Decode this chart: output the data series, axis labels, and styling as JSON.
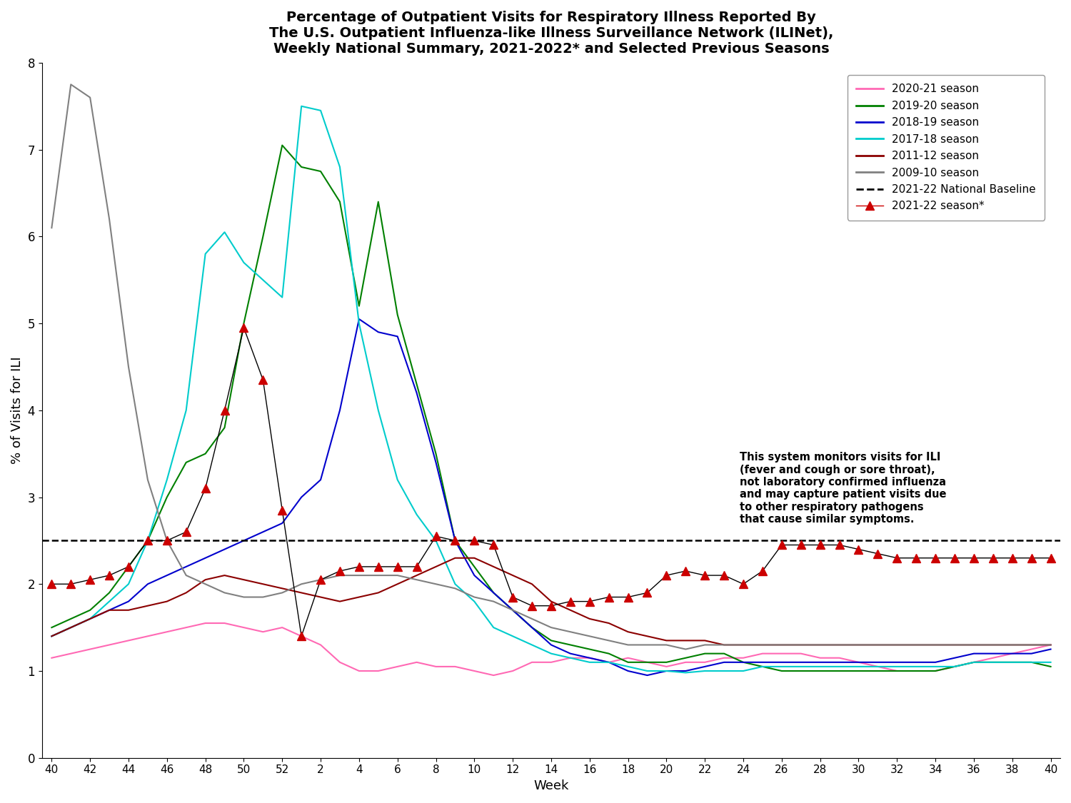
{
  "title": "Percentage of Outpatient Visits for Respiratory Illness Reported By\nThe U.S. Outpatient Influenza-like Illness Surveillance Network (ILINet),\nWeekly National Summary, 2021-2022* and Selected Previous Seasons",
  "xlabel": "Week",
  "ylabel": "% of Visits for ILI",
  "ylim": [
    0,
    8
  ],
  "yticks": [
    0,
    1,
    2,
    3,
    4,
    5,
    6,
    7,
    8
  ],
  "baseline": 2.5,
  "annotation": "This system monitors visits for ILI\n(fever and cough or sore throat),\nnot laboratory confirmed influenza\nand may capture patient visits due\nto other respiratory pathogens\nthat cause similar symptoms.",
  "x_tick_labels": [
    "40",
    "42",
    "44",
    "46",
    "48",
    "50",
    "52",
    "2",
    "4",
    "6",
    "8",
    "10",
    "12",
    "14",
    "16",
    "18",
    "20",
    "22",
    "24",
    "26",
    "28",
    "30",
    "32",
    "34",
    "36",
    "38",
    "40"
  ],
  "seasons": {
    "2020-21": {
      "color": "#FF69B4",
      "values": [
        1.15,
        1.2,
        1.25,
        1.3,
        1.35,
        1.4,
        1.45,
        1.5,
        1.55,
        1.55,
        1.5,
        1.45,
        1.5,
        1.4,
        1.3,
        1.1,
        1.0,
        1.0,
        1.05,
        1.1,
        1.05,
        1.05,
        1.0,
        0.95,
        1.0,
        1.1,
        1.1,
        1.15,
        1.15,
        1.1,
        1.15,
        1.1,
        1.05,
        1.1,
        1.1,
        1.15,
        1.15,
        1.2,
        1.2,
        1.2,
        1.15,
        1.15,
        1.1,
        1.05,
        1.0,
        1.0,
        1.0,
        1.05,
        1.1,
        1.15,
        1.2,
        1.25,
        1.3
      ]
    },
    "2019-20": {
      "color": "#008000",
      "values": [
        1.5,
        1.6,
        1.7,
        1.9,
        2.2,
        2.5,
        3.0,
        3.4,
        3.5,
        3.8,
        5.0,
        6.0,
        7.05,
        6.8,
        6.75,
        6.4,
        5.2,
        6.4,
        5.1,
        4.3,
        3.5,
        2.5,
        2.2,
        1.9,
        1.7,
        1.5,
        1.35,
        1.3,
        1.25,
        1.2,
        1.1,
        1.1,
        1.1,
        1.15,
        1.2,
        1.2,
        1.1,
        1.05,
        1.0,
        1.0,
        1.0,
        1.0,
        1.0,
        1.0,
        1.0,
        1.0,
        1.0,
        1.05,
        1.1,
        1.1,
        1.1,
        1.1,
        1.05
      ]
    },
    "2018-19": {
      "color": "#0000CD",
      "values": [
        1.4,
        1.5,
        1.6,
        1.7,
        1.8,
        2.0,
        2.1,
        2.2,
        2.3,
        2.4,
        2.5,
        2.6,
        2.7,
        3.0,
        3.2,
        4.0,
        5.05,
        4.9,
        4.85,
        4.2,
        3.4,
        2.5,
        2.1,
        1.9,
        1.7,
        1.5,
        1.3,
        1.2,
        1.15,
        1.1,
        1.0,
        0.95,
        1.0,
        1.0,
        1.05,
        1.1,
        1.1,
        1.1,
        1.1,
        1.1,
        1.1,
        1.1,
        1.1,
        1.1,
        1.1,
        1.1,
        1.1,
        1.15,
        1.2,
        1.2,
        1.2,
        1.2,
        1.25
      ]
    },
    "2017-18": {
      "color": "#00CCCC",
      "values": [
        1.4,
        1.5,
        1.6,
        1.8,
        2.0,
        2.5,
        3.2,
        4.0,
        5.8,
        6.05,
        5.7,
        5.5,
        5.3,
        7.5,
        7.45,
        6.8,
        5.0,
        4.0,
        3.2,
        2.8,
        2.5,
        2.0,
        1.8,
        1.5,
        1.4,
        1.3,
        1.2,
        1.15,
        1.1,
        1.1,
        1.05,
        1.0,
        1.0,
        0.98,
        1.0,
        1.0,
        1.0,
        1.05,
        1.05,
        1.05,
        1.05,
        1.05,
        1.05,
        1.05,
        1.05,
        1.05,
        1.05,
        1.05,
        1.1,
        1.1,
        1.1,
        1.1,
        1.1
      ]
    },
    "2011-12": {
      "color": "#8B0000",
      "values": [
        1.4,
        1.5,
        1.6,
        1.7,
        1.7,
        1.75,
        1.8,
        1.9,
        2.05,
        2.1,
        2.05,
        2.0,
        1.95,
        1.9,
        1.85,
        1.8,
        1.85,
        1.9,
        2.0,
        2.1,
        2.2,
        2.3,
        2.3,
        2.2,
        2.1,
        2.0,
        1.8,
        1.7,
        1.6,
        1.55,
        1.45,
        1.4,
        1.35,
        1.35,
        1.35,
        1.3,
        1.3,
        1.3,
        1.3,
        1.3,
        1.3,
        1.3,
        1.3,
        1.3,
        1.3,
        1.3,
        1.3,
        1.3,
        1.3,
        1.3,
        1.3,
        1.3,
        1.3
      ]
    },
    "2009-10": {
      "color": "#808080",
      "values": [
        6.1,
        7.75,
        7.6,
        6.2,
        4.5,
        3.2,
        2.5,
        2.1,
        2.0,
        1.9,
        1.85,
        1.85,
        1.9,
        2.0,
        2.05,
        2.1,
        2.1,
        2.1,
        2.1,
        2.05,
        2.0,
        1.95,
        1.85,
        1.8,
        1.7,
        1.6,
        1.5,
        1.45,
        1.4,
        1.35,
        1.3,
        1.3,
        1.3,
        1.25,
        1.3,
        1.3,
        1.3,
        1.3,
        1.3,
        1.3,
        1.3,
        1.3,
        1.3,
        1.3,
        1.3,
        1.3,
        1.3,
        1.3,
        1.3,
        1.3,
        1.3,
        1.3,
        1.3
      ]
    }
  },
  "season_2021_22": {
    "color": "#CC0000",
    "values": [
      2.0,
      2.0,
      2.05,
      2.1,
      2.2,
      2.5,
      2.5,
      2.6,
      3.1,
      4.0,
      4.95,
      4.35,
      2.85,
      1.4,
      2.05,
      2.15,
      2.2,
      2.2,
      2.2,
      2.2,
      2.55,
      2.5,
      2.5,
      2.45,
      1.85,
      1.75,
      1.75,
      1.8,
      1.8,
      1.85,
      1.85,
      1.9,
      2.1,
      2.15,
      2.1,
      2.1,
      2.0,
      2.15,
      2.45,
      2.45,
      2.45,
      2.45,
      2.4,
      2.35,
      2.3,
      2.3,
      2.3,
      2.3,
      2.3,
      2.3,
      2.3,
      2.3,
      2.3
    ]
  }
}
